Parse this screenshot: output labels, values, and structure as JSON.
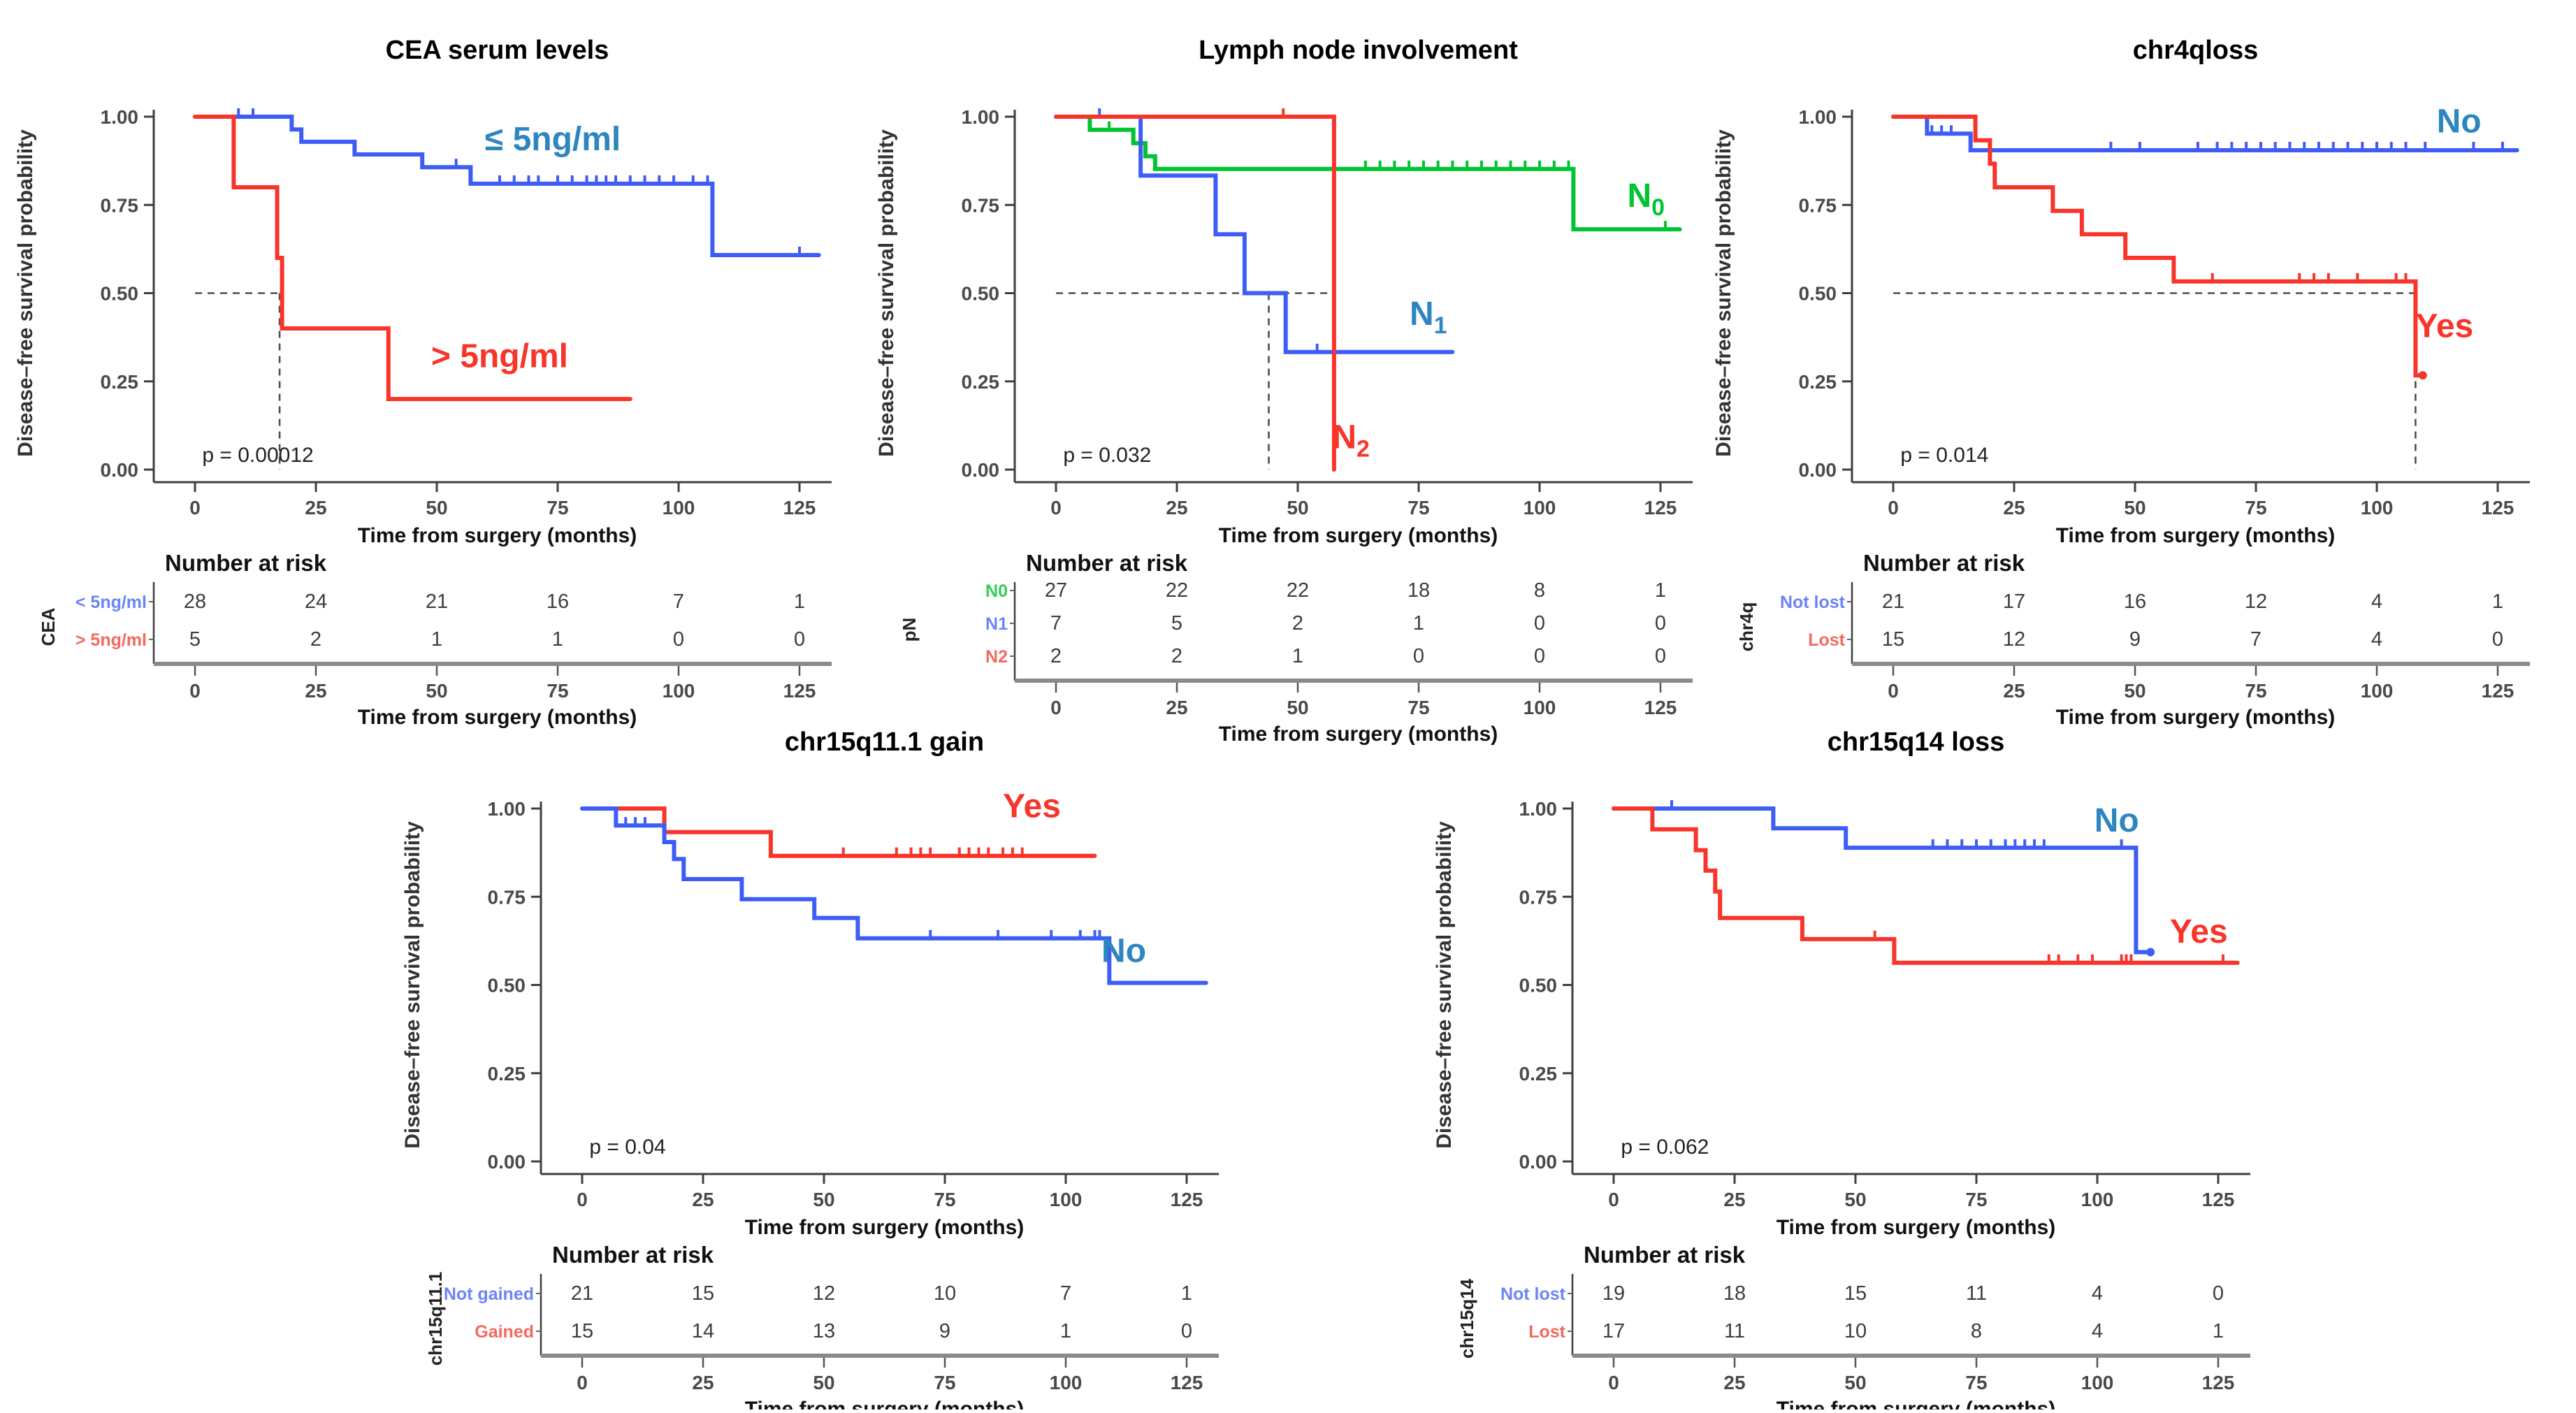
{
  "shared": {
    "ylabel": "Disease–free survival probability",
    "xlabel": "Time from surgery (months)",
    "risk_header": "Number at risk",
    "x_ticks": [
      0,
      25,
      50,
      75,
      100,
      125
    ],
    "y_ticks": [
      {
        "v": 1.0,
        "label": "1.00"
      },
      {
        "v": 0.75,
        "label": "0.75"
      },
      {
        "v": 0.5,
        "label": "0.50"
      },
      {
        "v": 0.25,
        "label": "0.25"
      },
      {
        "v": 0.0,
        "label": "0.00"
      }
    ],
    "xlim": [
      0,
      129
    ],
    "ylim": [
      0,
      1
    ],
    "grid": "off",
    "colors": {
      "line_blue": "#3E5CF6",
      "label_blue": "#2E86C1",
      "line_red": "#F8352A",
      "line_green": "#00C432",
      "risk_blue": "#6B84F8",
      "risk_red": "#F4695F",
      "risk_green": "#35CF57",
      "axis": "#3F3F3F",
      "dashed": "#4D4D4D",
      "table_axis": "#8A8A8A",
      "tick_text": "#4A4A4A",
      "value_text": "#3D3D3D"
    }
  },
  "chart_data": [
    {
      "type": "km_step",
      "title": "CEA serum levels",
      "p_value": "p = 0.00012",
      "dashed": {
        "h": {
          "y": 0.5,
          "x1": 17.5
        },
        "v": [
          17.5
        ]
      },
      "series": [
        {
          "name": "le-5ng-ml",
          "color": "#3E5CF6",
          "points": [
            [
              0,
              1
            ],
            [
              20,
              0.964
            ],
            [
              22,
              0.929
            ],
            [
              33,
              0.893
            ],
            [
              47,
              0.857
            ],
            [
              57,
              0.81
            ],
            [
              107,
              0.608
            ]
          ],
          "end": 129,
          "censors": [
            9,
            12,
            54,
            63,
            66,
            69,
            71,
            75,
            78,
            81,
            83,
            85,
            87,
            90,
            93,
            96,
            99,
            103,
            106,
            125
          ],
          "label": {
            "text": "≤ 5ng/ml",
            "sub": "",
            "color": "#2E86C1",
            "x": 74,
            "y": 0.905
          }
        },
        {
          "name": "gt-5ng-ml",
          "color": "#F8352A",
          "points": [
            [
              0,
              1
            ],
            [
              8,
              0.8
            ],
            [
              17,
              0.6
            ],
            [
              18,
              0.4
            ],
            [
              40,
              0.2
            ]
          ],
          "end": 90,
          "censors": [],
          "label": {
            "text": "> 5ng/ml",
            "sub": "",
            "color": "#F8352A",
            "x": 63,
            "y": 0.29
          }
        }
      ],
      "risk_table": {
        "group": "CEA",
        "rows": [
          {
            "label": "< 5ng/ml",
            "color": "#6B84F8",
            "values": [
              28,
              24,
              21,
              16,
              7,
              1
            ]
          },
          {
            "label": "> 5ng/ml",
            "color": "#F4695F",
            "values": [
              5,
              2,
              1,
              1,
              0,
              0
            ]
          }
        ]
      }
    },
    {
      "type": "km_step",
      "title": "Lymph node involvement",
      "p_value": "p = 0.032",
      "dashed": {
        "h": {
          "y": 0.5,
          "x1": 57.5
        },
        "v": [
          44,
          57.5
        ]
      },
      "series": [
        {
          "name": "N0",
          "color": "#00C432",
          "points": [
            [
              0,
              1
            ],
            [
              7,
              0.963
            ],
            [
              16,
              0.925
            ],
            [
              18.5,
              0.888
            ],
            [
              20.5,
              0.852
            ],
            [
              107,
              0.681
            ]
          ],
          "end": 129,
          "censors": [
            11,
            64,
            67,
            70,
            73,
            76,
            79,
            82,
            85,
            88,
            91,
            94,
            97,
            100,
            103,
            106,
            126
          ],
          "label": {
            "text": "N",
            "sub": "0",
            "color": "#00C432",
            "x": 122,
            "y": 0.745
          }
        },
        {
          "name": "N1",
          "color": "#3E5CF6",
          "points": [
            [
              0,
              1
            ],
            [
              17.5,
              0.833
            ],
            [
              33,
              0.667
            ],
            [
              39,
              0.5
            ],
            [
              47.5,
              0.333
            ]
          ],
          "end": 82,
          "censors": [
            9,
            54
          ],
          "label": {
            "text": "N",
            "sub": "1",
            "color": "#2E86C1",
            "x": 77,
            "y": 0.41
          }
        },
        {
          "name": "N2",
          "color": "#F8352A",
          "points": [
            [
              0,
              1
            ],
            [
              57.5,
              0.0
            ]
          ],
          "end": 57.5,
          "censors": [
            47
          ],
          "label": {
            "text": "N",
            "sub": "2",
            "color": "#F8352A",
            "x": 61,
            "y": 0.06
          }
        }
      ],
      "risk_table": {
        "group": "pN",
        "rows": [
          {
            "label": "N0",
            "color": "#35CF57",
            "values": [
              27,
              22,
              22,
              18,
              8,
              1
            ]
          },
          {
            "label": "N1",
            "color": "#6B84F8",
            "values": [
              7,
              5,
              2,
              1,
              0,
              0
            ]
          },
          {
            "label": "N2",
            "color": "#F4695F",
            "values": [
              2,
              2,
              1,
              0,
              0,
              0
            ]
          }
        ]
      }
    },
    {
      "type": "km_step",
      "title": "chr4qloss",
      "p_value": "p = 0.014",
      "dashed": {
        "h": {
          "y": 0.5,
          "x1": 108
        },
        "v": [
          108
        ]
      },
      "series": [
        {
          "name": "No",
          "color": "#3E5CF6",
          "points": [
            [
              0,
              1
            ],
            [
              7,
              0.952
            ],
            [
              16,
              0.905
            ]
          ],
          "end": 129,
          "censors": [
            8,
            10,
            12,
            45,
            51,
            63,
            67,
            70,
            73,
            76,
            79,
            82,
            85,
            88,
            91,
            94,
            97,
            100,
            103,
            106,
            110,
            120,
            126
          ],
          "label": {
            "text": "No",
            "sub": "",
            "color": "#2E86C1",
            "x": 117,
            "y": 0.955
          }
        },
        {
          "name": "Yes",
          "color": "#F8352A",
          "points": [
            [
              0,
              1
            ],
            [
              17,
              0.933
            ],
            [
              20,
              0.867
            ],
            [
              21,
              0.8
            ],
            [
              33,
              0.733
            ],
            [
              39,
              0.667
            ],
            [
              48,
              0.6
            ],
            [
              58,
              0.533
            ],
            [
              108,
              0.267
            ]
          ],
          "end": 109.5,
          "end_dot": true,
          "censors": [
            66,
            84,
            87,
            90,
            96,
            104,
            106
          ],
          "label": {
            "text": "Yes",
            "sub": "",
            "color": "#F8352A",
            "x": 114,
            "y": 0.375
          }
        }
      ],
      "risk_table": {
        "group": "chr4q",
        "rows": [
          {
            "label": "Not lost",
            "color": "#6B84F8",
            "values": [
              21,
              17,
              16,
              12,
              4,
              1
            ]
          },
          {
            "label": "Lost",
            "color": "#F4695F",
            "values": [
              15,
              12,
              9,
              7,
              4,
              0
            ]
          }
        ]
      }
    },
    {
      "type": "km_step",
      "title": "chr15q11.1 gain",
      "p_value": "p = 0.04",
      "dashed": null,
      "series": [
        {
          "name": "Yes",
          "color": "#F8352A",
          "points": [
            [
              0,
              1
            ],
            [
              17,
              0.933
            ],
            [
              39,
              0.866
            ]
          ],
          "end": 106,
          "censors": [
            54,
            65,
            68,
            70,
            72,
            78,
            80,
            82,
            84,
            87,
            89,
            91
          ],
          "label": {
            "text": "Yes",
            "sub": "",
            "color": "#F8352A",
            "x": 93,
            "y": 0.975
          }
        },
        {
          "name": "No",
          "color": "#3E5CF6",
          "points": [
            [
              0,
              1
            ],
            [
              7,
              0.952
            ],
            [
              17,
              0.905
            ],
            [
              19,
              0.857
            ],
            [
              21,
              0.8
            ],
            [
              33,
              0.743
            ],
            [
              48,
              0.69
            ],
            [
              57,
              0.632
            ],
            [
              109,
              0.506
            ]
          ],
          "end": 129,
          "censors": [
            9,
            11,
            13,
            72,
            86,
            97,
            103,
            106,
            107
          ],
          "label": {
            "text": "No",
            "sub": "",
            "color": "#2E86C1",
            "x": 112,
            "y": 0.565
          }
        }
      ],
      "risk_table": {
        "group": "chr15q11.1",
        "rows": [
          {
            "label": "Not gained",
            "color": "#6B84F8",
            "values": [
              21,
              15,
              12,
              10,
              7,
              1
            ]
          },
          {
            "label": "Gained",
            "color": "#F4695F",
            "values": [
              15,
              14,
              13,
              9,
              1,
              0
            ]
          }
        ]
      }
    },
    {
      "type": "km_step",
      "title": "chr15q14 loss",
      "p_value": "p = 0.062",
      "dashed": null,
      "series": [
        {
          "name": "No",
          "color": "#3E5CF6",
          "points": [
            [
              0,
              1
            ],
            [
              33,
              0.944
            ],
            [
              48,
              0.889
            ],
            [
              108,
              0.593
            ]
          ],
          "end": 111,
          "end_dot": true,
          "censors": [
            12,
            66,
            69,
            72,
            75,
            78,
            81,
            83,
            85,
            87,
            89,
            105
          ],
          "label": {
            "text": "No",
            "sub": "",
            "color": "#2E86C1",
            "x": 104,
            "y": 0.935
          }
        },
        {
          "name": "Yes",
          "color": "#F8352A",
          "points": [
            [
              0,
              1
            ],
            [
              8,
              0.941
            ],
            [
              17,
              0.882
            ],
            [
              19,
              0.824
            ],
            [
              21,
              0.765
            ],
            [
              22,
              0.69
            ],
            [
              39,
              0.63
            ],
            [
              58,
              0.563
            ]
          ],
          "end": 129,
          "censors": [
            54,
            90,
            92,
            96,
            99,
            105,
            106,
            107,
            126
          ],
          "label": {
            "text": "Yes",
            "sub": "",
            "color": "#F8352A",
            "x": 121,
            "y": 0.62
          }
        }
      ],
      "risk_table": {
        "group": "chr15q14",
        "rows": [
          {
            "label": "Not lost",
            "color": "#6B84F8",
            "values": [
              19,
              18,
              15,
              11,
              4,
              0
            ]
          },
          {
            "label": "Lost",
            "color": "#F4695F",
            "values": [
              17,
              11,
              10,
              8,
              4,
              1
            ]
          }
        ]
      }
    }
  ]
}
